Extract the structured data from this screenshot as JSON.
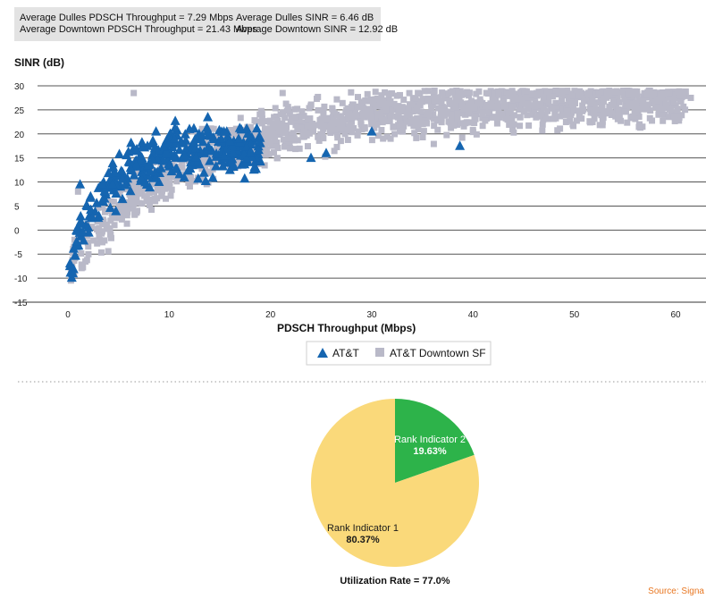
{
  "stats": {
    "dulles_tput": "Average Dulles PDSCH Throughput = 7.29 Mbps",
    "dulles_sinr": "Average Dulles SINR = 6.46 dB",
    "downtown_tput": "Average Downtown PDSCH Throughput =  21.43 Mbps",
    "downtown_sinr": "Average Downtown SINR = 12.92 dB"
  },
  "colors": {
    "att": "#1565b0",
    "downtown": "#b9b9c8",
    "pie_ri1": "#fad97a",
    "pie_ri2": "#2db34a",
    "source": "#e87722"
  },
  "chart_data": [
    {
      "type": "scatter",
      "ylabel": "SINR (dB)",
      "xlabel": "PDSCH Throughput (Mbps)",
      "xlim": [
        -3,
        63
      ],
      "ylim": [
        -15,
        30
      ],
      "xticks": [
        0,
        10,
        20,
        30,
        40,
        50,
        60
      ],
      "yticks": [
        -15,
        -10,
        -5,
        0,
        5,
        10,
        15,
        20,
        25,
        30
      ],
      "grid": "horizontal",
      "legend_position": "bottom-center",
      "series": [
        {
          "name": "AT&T",
          "marker": "triangle",
          "color": "#1565b0",
          "trend": {
            "x_min": 0.2,
            "x_max": 19,
            "sinr_at_zero": -8,
            "sinr_max": 17,
            "rise_rate": 0.28,
            "spread": 4.5,
            "count": 360
          },
          "points": [
            [
              8.7,
              20.5
            ],
            [
              15.4,
              20.5
            ],
            [
              30.0,
              20.5
            ],
            [
              38.7,
              17.5
            ],
            [
              1.2,
              9.5
            ],
            [
              0.5,
              -9.0
            ],
            [
              0.2,
              -7.5
            ],
            [
              12.0,
              21.0
            ],
            [
              10.5,
              19.0
            ],
            [
              18.0,
              16.0
            ],
            [
              16.0,
              18.5
            ],
            [
              25.5,
              16.0
            ],
            [
              24.0,
              15.0
            ]
          ]
        },
        {
          "name": "AT&T Downtown SF",
          "marker": "square",
          "color": "#b9b9c8",
          "trend": {
            "x_min": 0,
            "x_max": 61,
            "sinr_at_zero": -7,
            "sinr_max": 27.5,
            "rise_rate": 0.075,
            "spread": 4.5,
            "count": 1500
          },
          "points": [
            [
              6.5,
              28.5
            ],
            [
              21.2,
              28.5
            ],
            [
              59.8,
              26.5
            ],
            [
              61.5,
              27.5
            ],
            [
              57.0,
              25.5
            ],
            [
              0.3,
              -10.5
            ],
            [
              1.0,
              8.0
            ]
          ]
        }
      ]
    },
    {
      "type": "pie",
      "slices": [
        {
          "label": "Rank Indicator 2",
          "value": 19.63,
          "value_label": "19.63%",
          "color": "#2db34a"
        },
        {
          "label": "Rank Indicator 1",
          "value": 80.37,
          "value_label": "80.37%",
          "color": "#fad97a"
        }
      ],
      "caption": "Utilization Rate = 77.0%"
    }
  ],
  "source_label": "Source: Signa"
}
